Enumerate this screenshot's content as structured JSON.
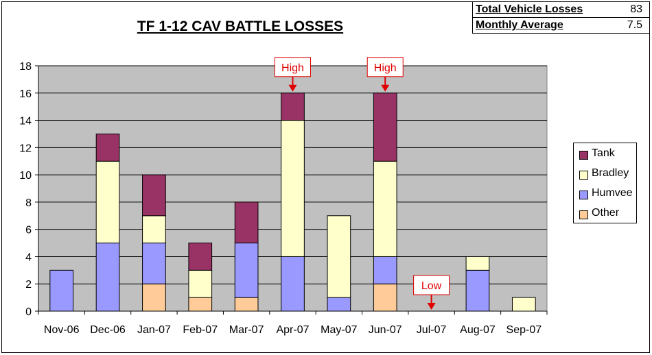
{
  "chart_data": {
    "type": "bar",
    "stacked": true,
    "title": "TF 1-12 CAV BATTLE LOSSES",
    "categories": [
      "Nov-06",
      "Dec-06",
      "Jan-07",
      "Feb-07",
      "Mar-07",
      "Apr-07",
      "May-07",
      "Jun-07",
      "Jul-07",
      "Aug-07",
      "Sep-07"
    ],
    "series": [
      {
        "name": "Other",
        "color": "#ffcc99",
        "values": [
          0,
          0,
          2,
          1,
          1,
          0,
          0,
          2,
          0,
          0,
          0
        ]
      },
      {
        "name": "Humvee",
        "color": "#9999ff",
        "values": [
          3,
          5,
          3,
          0,
          4,
          4,
          1,
          2,
          0,
          3,
          0
        ]
      },
      {
        "name": "Bradley",
        "color": "#ffffcc",
        "values": [
          0,
          6,
          2,
          2,
          0,
          10,
          6,
          7,
          0,
          1,
          1
        ]
      },
      {
        "name": "Tank",
        "color": "#993366",
        "values": [
          0,
          2,
          3,
          2,
          3,
          2,
          0,
          5,
          0,
          0,
          0
        ]
      }
    ],
    "legend_order": [
      "Tank",
      "Bradley",
      "Humvee",
      "Other"
    ],
    "ylim": [
      0,
      18
    ],
    "yticks": [
      "0",
      "2",
      "4",
      "6",
      "8",
      "10",
      "12",
      "14",
      "16",
      "18"
    ],
    "grid": true,
    "plot_background": "#c0c0c0",
    "legend_position": "right",
    "annotations": [
      {
        "label": "High",
        "category": "Apr-07",
        "value": 16
      },
      {
        "label": "High",
        "category": "Jun-07",
        "value": 16
      },
      {
        "label": "Low",
        "category": "Jul-07",
        "value": 0
      }
    ],
    "annotation_color": "#e00000"
  },
  "stats": {
    "total_label": "Total Vehicle Losses",
    "total_value": "83",
    "avg_label": "Monthly Average",
    "avg_value": "7.5"
  }
}
